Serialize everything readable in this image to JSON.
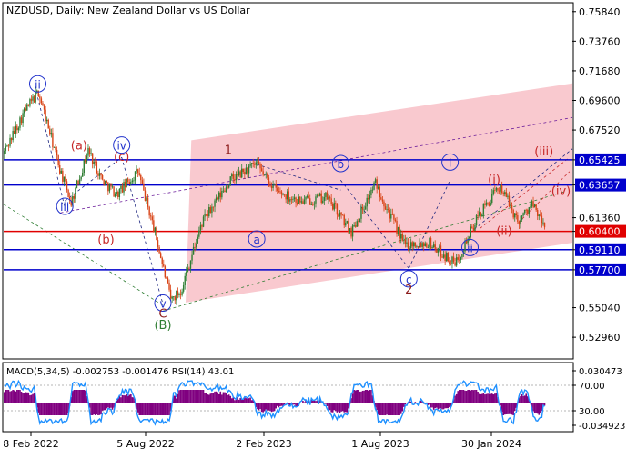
{
  "window": {
    "title": "NZDUSD, Daily:  New Zealand Dollar vs US Dollar"
  },
  "colors": {
    "candle_up": "#2e7d32",
    "candle_down": "#d84315",
    "channel_fill": "#f8c3ca",
    "level_line": "#0000cc",
    "current_level_line": "#e00000",
    "label_blue": "#2233cc",
    "label_red": "#c62828",
    "label_green": "#2e7d32",
    "label_brown": "#8b1a1a",
    "macd_histogram": "#800080",
    "macd_signal": "#c00000",
    "rsi_line": "#1e90ff"
  },
  "chart_data": [
    {
      "type": "candlestick",
      "symbol": "NZDUSD",
      "timeframe": "Daily",
      "title": "NZDUSD, Daily:  New Zealand Dollar vs US Dollar",
      "y_range": [
        0.515,
        0.764
      ],
      "y_ticks": [
        "0.75840",
        "0.73760",
        "0.71680",
        "0.69600",
        "0.67520",
        "0.65425",
        "0.63657",
        "0.61360",
        "0.60400",
        "0.59110",
        "0.57700",
        "0.55040",
        "0.52960"
      ],
      "x_ticks": [
        "8 Feb 2022",
        "5 Aug 2022",
        "2 Feb 2023",
        "1 Aug 2023",
        "30 Jan 2024"
      ],
      "price_path": [
        {
          "t": 0,
          "v": 0.658
        },
        {
          "t": 15,
          "v": 0.688
        },
        {
          "t": 25,
          "v": 0.702
        },
        {
          "t": 40,
          "v": 0.648
        },
        {
          "t": 48,
          "v": 0.624
        },
        {
          "t": 60,
          "v": 0.661
        },
        {
          "t": 70,
          "v": 0.64
        },
        {
          "t": 80,
          "v": 0.63
        },
        {
          "t": 95,
          "v": 0.646
        },
        {
          "t": 107,
          "v": 0.603
        },
        {
          "t": 118,
          "v": 0.556
        },
        {
          "t": 125,
          "v": 0.562
        },
        {
          "t": 140,
          "v": 0.61
        },
        {
          "t": 160,
          "v": 0.64
        },
        {
          "t": 178,
          "v": 0.651
        },
        {
          "t": 193,
          "v": 0.632
        },
        {
          "t": 210,
          "v": 0.625
        },
        {
          "t": 228,
          "v": 0.628
        },
        {
          "t": 245,
          "v": 0.604
        },
        {
          "t": 262,
          "v": 0.638
        },
        {
          "t": 282,
          "v": 0.595
        },
        {
          "t": 300,
          "v": 0.596
        },
        {
          "t": 318,
          "v": 0.581
        },
        {
          "t": 335,
          "v": 0.616
        },
        {
          "t": 350,
          "v": 0.636
        },
        {
          "t": 362,
          "v": 0.611
        },
        {
          "t": 372,
          "v": 0.623
        },
        {
          "t": 380,
          "v": 0.609
        }
      ],
      "levels": [
        {
          "label": "0.65425",
          "value": 0.65425,
          "kind": "resistance"
        },
        {
          "label": "0.63657",
          "value": 0.63657,
          "kind": "resistance"
        },
        {
          "label": "0.60400",
          "value": 0.604,
          "kind": "current"
        },
        {
          "label": "0.59110",
          "value": 0.5911,
          "kind": "support"
        },
        {
          "label": "0.57700",
          "value": 0.577,
          "kind": "support"
        }
      ],
      "wave_labels": [
        {
          "text": "ii",
          "t": 24,
          "v": 0.707,
          "color": "blue",
          "circled": true
        },
        {
          "text": "(a)",
          "t": 53,
          "v": 0.664,
          "color": "red",
          "circled": false
        },
        {
          "text": "iv",
          "t": 83,
          "v": 0.664,
          "color": "blue",
          "circled": true
        },
        {
          "text": "(c)",
          "t": 83,
          "v": 0.656,
          "color": "red",
          "circled": false
        },
        {
          "text": "iii",
          "t": 43,
          "v": 0.621,
          "color": "blue",
          "circled": true
        },
        {
          "text": "(b)",
          "t": 72,
          "v": 0.598,
          "color": "red",
          "circled": false
        },
        {
          "text": "v",
          "t": 112,
          "v": 0.553,
          "color": "blue",
          "circled": true
        },
        {
          "text": "C",
          "t": 112,
          "v": 0.546,
          "color": "brown",
          "circled": false
        },
        {
          "text": "(B)",
          "t": 112,
          "v": 0.538,
          "color": "green",
          "circled": false
        },
        {
          "text": "1",
          "t": 158,
          "v": 0.661,
          "color": "brown",
          "circled": false
        },
        {
          "text": "a",
          "t": 178,
          "v": 0.598,
          "color": "blue",
          "circled": true
        },
        {
          "text": "b",
          "t": 237,
          "v": 0.651,
          "color": "blue",
          "circled": true
        },
        {
          "text": "c",
          "t": 285,
          "v": 0.57,
          "color": "blue",
          "circled": true
        },
        {
          "text": "2",
          "t": 285,
          "v": 0.563,
          "color": "brown",
          "circled": false
        },
        {
          "text": "i",
          "t": 314,
          "v": 0.652,
          "color": "blue",
          "circled": true
        },
        {
          "text": "(i)",
          "t": 345,
          "v": 0.64,
          "color": "red",
          "circled": false
        },
        {
          "text": "(ii)",
          "t": 352,
          "v": 0.604,
          "color": "red",
          "circled": false
        },
        {
          "text": "ii",
          "t": 328,
          "v": 0.592,
          "color": "blue",
          "circled": true
        },
        {
          "text": "(iii)",
          "t": 380,
          "v": 0.66,
          "color": "red",
          "circled": false
        },
        {
          "text": "(iv)",
          "t": 392,
          "v": 0.632,
          "color": "red",
          "circled": false
        }
      ]
    },
    {
      "type": "line",
      "title": "MACD(5,34,5) -0.002753 -0.001476 RSI(14) 43.01",
      "indicators": {
        "macd": {
          "fast": 5,
          "slow": 34,
          "signal": 5,
          "main": -0.002753,
          "signal_value": -0.001476
        },
        "rsi": {
          "period": 14,
          "value": 43.01
        }
      },
      "right_axis": [
        "0.030473",
        "-0.034923"
      ],
      "rsi_levels": [
        "70.00",
        "30.00"
      ]
    }
  ]
}
